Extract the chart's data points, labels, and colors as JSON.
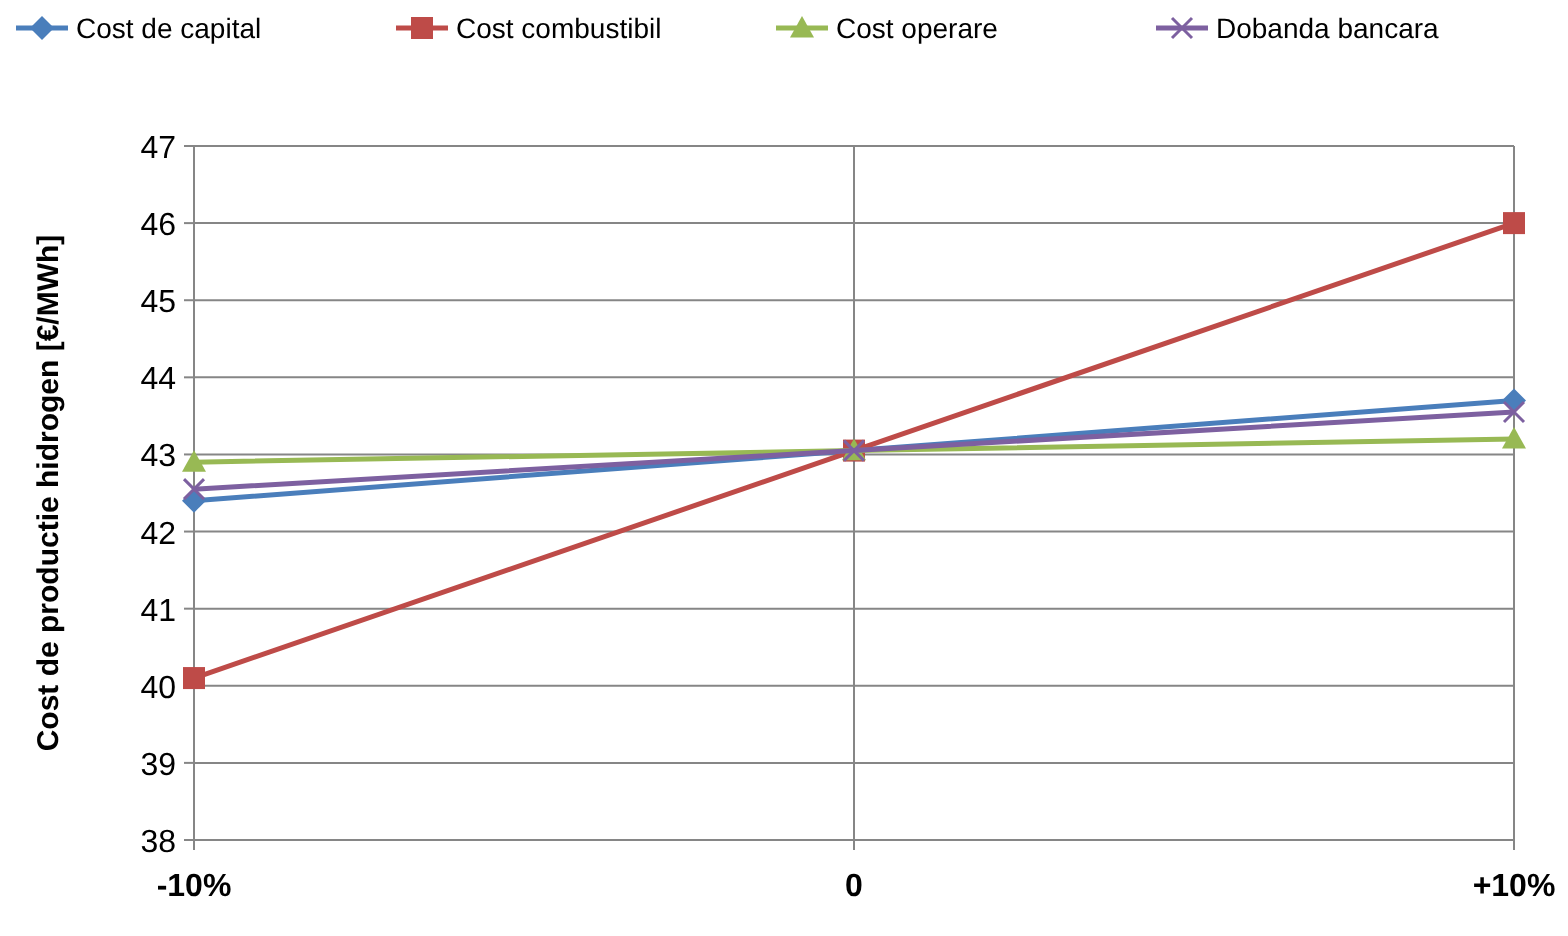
{
  "chart_data": {
    "type": "line",
    "ylabel": "Cost de productie hidrogen [€/MWh]",
    "categories": [
      "-10%",
      "0",
      "+10%"
    ],
    "series": [
      {
        "name": "Cost de capital",
        "color": "#4a7ebb",
        "marker": "diamond",
        "values": [
          42.4,
          43.05,
          43.7
        ]
      },
      {
        "name": "Cost combustibil",
        "color": "#be4b48",
        "marker": "square",
        "values": [
          40.1,
          43.05,
          46.0
        ]
      },
      {
        "name": "Cost operare",
        "color": "#98b954",
        "marker": "triangle",
        "values": [
          42.9,
          43.05,
          43.2
        ]
      },
      {
        "name": "Dobanda bancara",
        "color": "#7d60a0",
        "marker": "cross",
        "values": [
          42.55,
          43.05,
          43.55
        ]
      }
    ],
    "ylim": [
      38,
      47
    ],
    "yticks": [
      38,
      39,
      40,
      41,
      42,
      43,
      44,
      45,
      46,
      47
    ],
    "grid": true,
    "legend": "top",
    "line_style": "solid"
  }
}
